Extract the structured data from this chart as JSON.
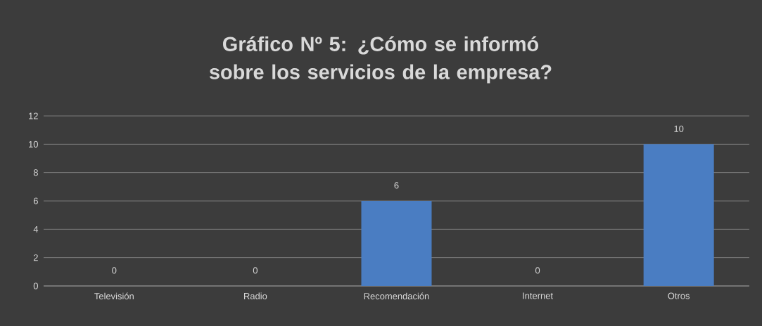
{
  "chart_data": {
    "type": "bar",
    "title": "Gráfico Nº 5: ¿Cómo se informó sobre los servicios de la empresa?",
    "categories": [
      "Televisión",
      "Radio",
      "Recomendación",
      "Internet",
      "Otros"
    ],
    "values": [
      0,
      0,
      6,
      0,
      10
    ],
    "color": "#4a7dc2",
    "ylim": [
      0,
      12
    ],
    "yticks": [
      0,
      2,
      4,
      6,
      8,
      10,
      12
    ],
    "grid": "y",
    "data_labels": true
  }
}
